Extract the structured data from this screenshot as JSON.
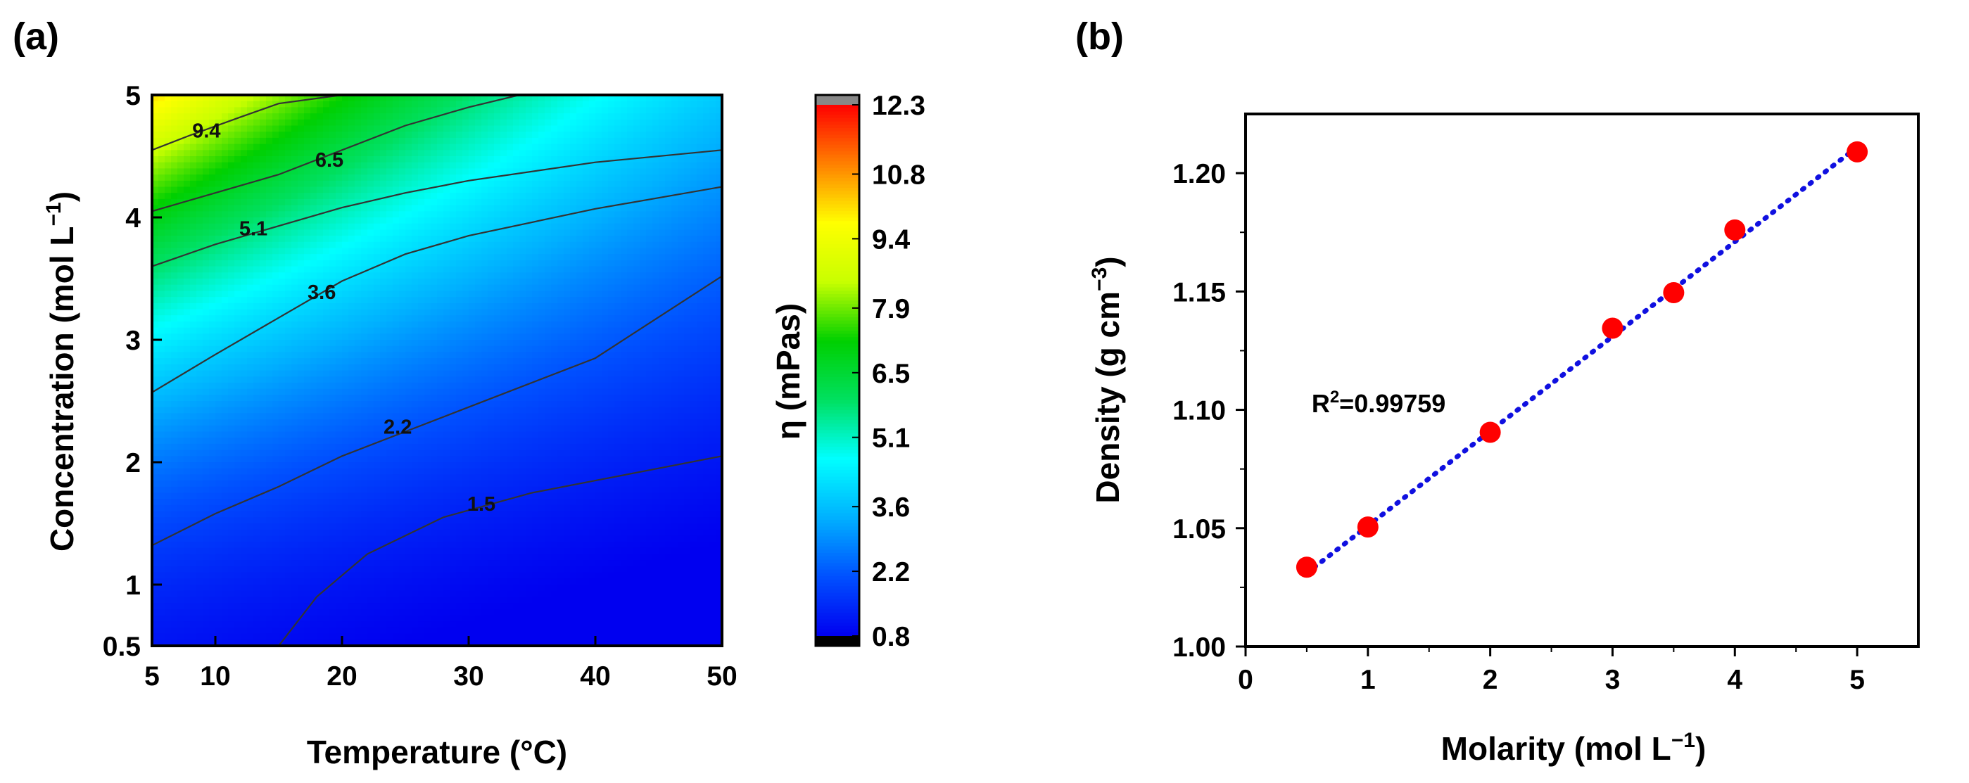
{
  "panels": {
    "a": "(a)",
    "b": "(b)"
  },
  "chart_data": [
    {
      "type": "heatmap",
      "panel": "(a)",
      "xlabel": "Temperature (°C)",
      "ylabel_main": "Concentration (mol L",
      "ylabel_sup": "−1",
      "ylabel_end": ")",
      "xlim": [
        5,
        50
      ],
      "ylim": [
        0.5,
        5
      ],
      "xticks": [
        "5",
        "10",
        "20",
        "30",
        "40",
        "50"
      ],
      "xtick_values": [
        5,
        10,
        20,
        30,
        40,
        50
      ],
      "yticks": [
        "0.5",
        "1",
        "2",
        "3",
        "4",
        "5"
      ],
      "ytick_values": [
        0.5,
        1,
        2,
        3,
        4,
        5
      ],
      "contour_labels": [
        "9.4",
        "6.5",
        "5.1",
        "3.6",
        "2.2",
        "1.5"
      ],
      "contour_label_positions": [
        {
          "level": "9.4",
          "temperature": 9.3,
          "concentration": 4.71
        },
        {
          "level": "6.5",
          "temperature": 19.0,
          "concentration": 4.47
        },
        {
          "level": "5.1",
          "temperature": 13.0,
          "concentration": 3.91
        },
        {
          "level": "3.6",
          "temperature": 18.4,
          "concentration": 3.39
        },
        {
          "level": "2.2",
          "temperature": 24.4,
          "concentration": 2.29
        },
        {
          "level": "1.5",
          "temperature": 31.0,
          "concentration": 1.66
        }
      ],
      "contour_lines": [
        {
          "level": "9.4",
          "points": [
            [
              5,
              4.55
            ],
            [
              8,
              4.67
            ],
            [
              12,
              4.82
            ],
            [
              15,
              4.93
            ],
            [
              20,
              5.0
            ]
          ]
        },
        {
          "level": "6.5",
          "points": [
            [
              5,
              4.05
            ],
            [
              10,
              4.2
            ],
            [
              15,
              4.35
            ],
            [
              20,
              4.55
            ],
            [
              25,
              4.75
            ],
            [
              30,
              4.9
            ],
            [
              34,
              5.0
            ]
          ]
        },
        {
          "level": "5.1",
          "points": [
            [
              5,
              3.6
            ],
            [
              10,
              3.78
            ],
            [
              15,
              3.93
            ],
            [
              20,
              4.08
            ],
            [
              25,
              4.2
            ],
            [
              30,
              4.3
            ],
            [
              40,
              4.45
            ],
            [
              50,
              4.55
            ]
          ]
        },
        {
          "level": "3.6",
          "points": [
            [
              5,
              2.57
            ],
            [
              10,
              2.88
            ],
            [
              15,
              3.18
            ],
            [
              20,
              3.48
            ],
            [
              25,
              3.7
            ],
            [
              30,
              3.85
            ],
            [
              40,
              4.07
            ],
            [
              50,
              4.25
            ]
          ]
        },
        {
          "level": "2.2",
          "points": [
            [
              5,
              1.32
            ],
            [
              10,
              1.58
            ],
            [
              15,
              1.8
            ],
            [
              20,
              2.05
            ],
            [
              25,
              2.25
            ],
            [
              30,
              2.45
            ],
            [
              40,
              2.85
            ],
            [
              50,
              3.52
            ]
          ]
        },
        {
          "level": "1.5",
          "points": [
            [
              15,
              0.5
            ],
            [
              18,
              0.9
            ],
            [
              22,
              1.25
            ],
            [
              28,
              1.55
            ],
            [
              35,
              1.75
            ],
            [
              40,
              1.85
            ],
            [
              45,
              1.95
            ],
            [
              50,
              2.05
            ]
          ]
        }
      ],
      "colorbar": {
        "label": "η (mPas)",
        "min": 0.8,
        "max": 12.3,
        "ticks": [
          "0.8",
          "2.2",
          "3.6",
          "5.1",
          "6.5",
          "7.9",
          "9.4",
          "10.8",
          "12.3"
        ],
        "tick_values": [
          0.8,
          2.2,
          3.6,
          5.1,
          6.5,
          7.9,
          9.4,
          10.8,
          12.3
        ],
        "over_color": "#888888",
        "under_color": "#000000"
      },
      "color_stops": [
        "#0000f0",
        "#0050ff",
        "#00b0ff",
        "#00ffff",
        "#00e060",
        "#00d000",
        "#c8ff00",
        "#ffff00",
        "#ff8000",
        "#ff0000"
      ]
    },
    {
      "type": "scatter",
      "panel": "(b)",
      "xlabel_main": "Molarity (mol L",
      "xlabel_sup": "−1",
      "xlabel_end": ")",
      "ylabel_main": "Density (g cm",
      "ylabel_sup": "−3",
      "ylabel_end": ")",
      "xlim": [
        0,
        5.5
      ],
      "ylim": [
        1.0,
        1.225
      ],
      "xticks": [
        "0",
        "1",
        "2",
        "3",
        "4",
        "5"
      ],
      "xtick_values": [
        0,
        1,
        2,
        3,
        4,
        5
      ],
      "yticks": [
        "1.00",
        "1.05",
        "1.10",
        "1.15",
        "1.20"
      ],
      "ytick_values": [
        1.0,
        1.05,
        1.1,
        1.15,
        1.2
      ],
      "points": [
        {
          "x": 0.5,
          "y": 1.0335
        },
        {
          "x": 1.0,
          "y": 1.0505
        },
        {
          "x": 2.0,
          "y": 1.0905
        },
        {
          "x": 3.0,
          "y": 1.1345
        },
        {
          "x": 3.5,
          "y": 1.1495
        },
        {
          "x": 4.0,
          "y": 1.176
        },
        {
          "x": 5.0,
          "y": 1.209
        }
      ],
      "fit_line": {
        "x": [
          0.5,
          5.0
        ],
        "y": [
          1.031,
          1.211
        ]
      },
      "annotation_main": "R",
      "annotation_sup": "2",
      "annotation_end": "=0.99759",
      "annotation_position": {
        "x": 1.0,
        "y": 1.099
      },
      "point_color": "#ff0000",
      "line_color": "#1010e0"
    }
  ]
}
